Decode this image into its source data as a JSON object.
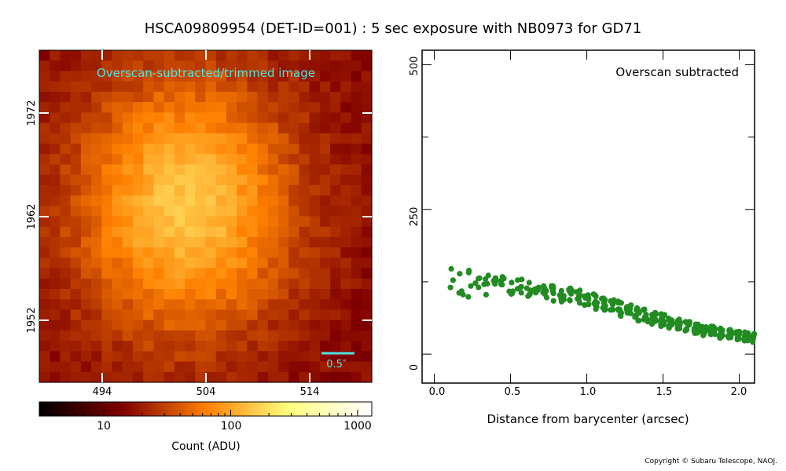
{
  "title": "HSCA09809954 (DET-ID=001) :  5 sec exposure with NB0973 for GD71",
  "copyright": "Copyright © Subaru Telescope, NAOJ.",
  "image_panel": {
    "label": "Overscan-subtracted/trimmed image",
    "x_ticks": [
      "494",
      "504",
      "514"
    ],
    "y_ticks": [
      "1972",
      "1962",
      "1952"
    ],
    "scale_bar_label": "0.5″",
    "label_color": "#4fe3e3"
  },
  "colorbar": {
    "xlabel": "Count (ADU)",
    "tick_labels": [
      "10",
      "100",
      "1000"
    ],
    "scale": "log",
    "colormap": "afmhot"
  },
  "chart_data": {
    "type": "scatter",
    "title": "Overscan subtracted",
    "xlabel": "Distance from barycenter (arcsec)",
    "ylabel": "",
    "xlim": [
      -0.08,
      2.1
    ],
    "ylim": [
      -50,
      525
    ],
    "x_ticks": [
      "0.0",
      "0.5",
      "1.0",
      "1.5",
      "2.0"
    ],
    "y_ticks": [
      "0",
      "250",
      "500"
    ],
    "marker_color": "#228b22",
    "trend": [
      [
        0.12,
        120
      ],
      [
        0.3,
        122
      ],
      [
        0.5,
        118
      ],
      [
        0.7,
        110
      ],
      [
        0.9,
        100
      ],
      [
        1.1,
        88
      ],
      [
        1.3,
        72
      ],
      [
        1.5,
        58
      ],
      [
        1.7,
        45
      ],
      [
        1.9,
        35
      ],
      [
        2.1,
        28
      ]
    ],
    "scatter": [
      30,
      20,
      15,
      14,
      14,
      13,
      12,
      11,
      10,
      9,
      8
    ]
  }
}
